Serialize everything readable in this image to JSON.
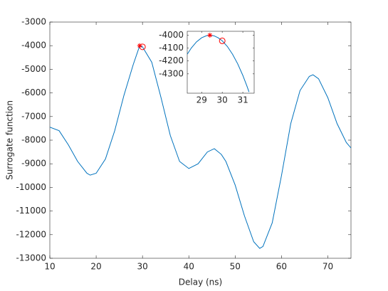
{
  "chart_data": [
    {
      "type": "line",
      "xlabel": "Delay (ns)",
      "ylabel": "Surrogate function",
      "xlim": [
        10,
        75
      ],
      "ylim": [
        -13000,
        -3000
      ],
      "xticks": [
        10,
        20,
        30,
        40,
        50,
        60,
        70
      ],
      "yticks": [
        -13000,
        -12000,
        -11000,
        -10000,
        -9000,
        -8000,
        -7000,
        -6000,
        -5000,
        -4000,
        -3000
      ],
      "series": [
        {
          "style": "line",
          "color": "#0072bd",
          "x": [
            10,
            12,
            14,
            16,
            18,
            18.7,
            20,
            22,
            24,
            26,
            28,
            29.4,
            30,
            32,
            34,
            36,
            38,
            40,
            42,
            44,
            45.5,
            47,
            48,
            50,
            52,
            54,
            55.3,
            56,
            58,
            60,
            62,
            64,
            66,
            66.8,
            68,
            70,
            72,
            74,
            75
          ],
          "values": [
            -7450,
            -7600,
            -8200,
            -8900,
            -9400,
            -9480,
            -9400,
            -8800,
            -7600,
            -6100,
            -4800,
            -4000,
            -4050,
            -4700,
            -6200,
            -7800,
            -8900,
            -9200,
            -9000,
            -8500,
            -8360,
            -8600,
            -8900,
            -9900,
            -11200,
            -12300,
            -12580,
            -12500,
            -11500,
            -9500,
            -7300,
            -5900,
            -5300,
            -5230,
            -5400,
            -6200,
            -7300,
            -8100,
            -8330
          ]
        },
        {
          "style": "star",
          "color": "#ff0000",
          "x": [
            29.4
          ],
          "values": [
            -4000
          ]
        },
        {
          "style": "circle",
          "color": "#ff0000",
          "x": [
            30
          ],
          "values": [
            -4050
          ]
        }
      ]
    },
    {
      "type": "line",
      "xlim": [
        28.3,
        31.55
      ],
      "ylim": [
        -4450,
        -3970
      ],
      "xticks": [
        29,
        30,
        31
      ],
      "yticks": [
        -4300,
        -4200,
        -4100,
        -4000
      ],
      "series": [
        {
          "style": "line",
          "color": "#0072bd",
          "x": [
            28.3,
            28.5,
            28.75,
            29,
            29.25,
            29.4,
            29.6,
            29.8,
            30,
            30.25,
            30.5,
            30.75,
            31,
            31.2,
            31.3
          ],
          "values": [
            -4148,
            -4099,
            -4052,
            -4020,
            -4003,
            -4000,
            -4005,
            -4020,
            -4044,
            -4088,
            -4148,
            -4222,
            -4312,
            -4395,
            -4440
          ]
        },
        {
          "style": "star",
          "color": "#ff0000",
          "x": [
            29.4
          ],
          "values": [
            -4000
          ]
        },
        {
          "style": "circle",
          "color": "#ff0000",
          "x": [
            30
          ],
          "values": [
            -4044
          ]
        }
      ]
    }
  ]
}
